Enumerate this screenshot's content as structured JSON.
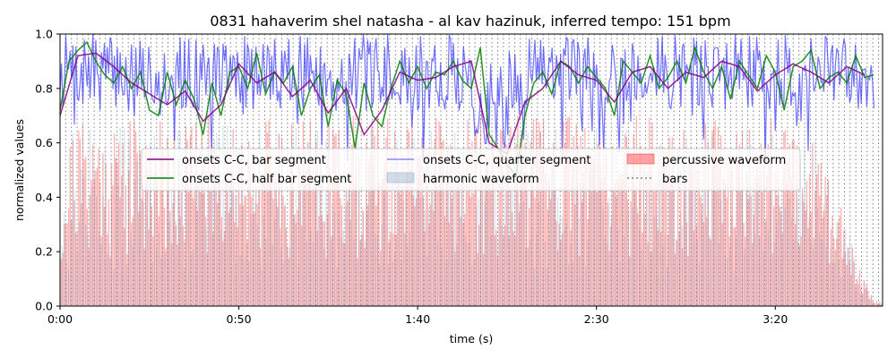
{
  "chart_data": {
    "type": "line",
    "title": "0831 hahaverim shel natasha - al kav hazinuk, inferred tempo: 151 bpm",
    "xlabel": "time (s)",
    "ylabel": "normalized values",
    "xlim": [
      0,
      230
    ],
    "ylim": [
      0,
      1.0
    ],
    "x_ticks": [
      0,
      50,
      100,
      150,
      200
    ],
    "x_tick_labels": [
      "0:00",
      "0:50",
      "1:40",
      "2:30",
      "3:20"
    ],
    "y_ticks": [
      0,
      0.2,
      0.4,
      0.6,
      0.8,
      1.0
    ],
    "y_tick_labels": [
      "0.0",
      "0.2",
      "0.4",
      "0.6",
      "0.8",
      "1.0"
    ],
    "tempo_bpm": 151,
    "legend_position": "center",
    "colors": {
      "bar": "#800080",
      "half": "#008000",
      "quarter": "#0000ff",
      "percussive": "#ff0000",
      "harmonic": "#4682b4",
      "bars": "#808080"
    },
    "series": [
      {
        "name": "onsets C-C, bar segment",
        "key": "bar",
        "x": [
          0,
          5,
          10,
          15,
          20,
          25,
          30,
          35,
          40,
          45,
          50,
          55,
          60,
          65,
          70,
          75,
          80,
          85,
          90,
          95,
          100,
          105,
          110,
          115,
          120,
          125,
          130,
          135,
          140,
          145,
          150,
          155,
          160,
          165,
          170,
          175,
          180,
          185,
          190,
          195,
          200,
          205,
          210,
          215,
          220,
          225
        ],
        "values": [
          0.7,
          0.92,
          0.93,
          0.88,
          0.82,
          0.78,
          0.74,
          0.79,
          0.68,
          0.74,
          0.89,
          0.82,
          0.86,
          0.77,
          0.83,
          0.71,
          0.8,
          0.63,
          0.72,
          0.86,
          0.83,
          0.84,
          0.88,
          0.9,
          0.6,
          0.56,
          0.75,
          0.8,
          0.9,
          0.85,
          0.83,
          0.75,
          0.86,
          0.88,
          0.8,
          0.86,
          0.84,
          0.9,
          0.88,
          0.79,
          0.85,
          0.89,
          0.86,
          0.82,
          0.88,
          0.85
        ]
      },
      {
        "name": "onsets C-C, half bar segment",
        "key": "half",
        "x": [
          0,
          2.5,
          5,
          7.5,
          10,
          12.5,
          15,
          17.5,
          20,
          22.5,
          25,
          27.5,
          30,
          32.5,
          35,
          37.5,
          40,
          42.5,
          45,
          47.5,
          50,
          52.5,
          55,
          57.5,
          60,
          62.5,
          65,
          67.5,
          70,
          72.5,
          75,
          77.5,
          80,
          82.5,
          85,
          87.5,
          90,
          92.5,
          95,
          97.5,
          100,
          102.5,
          105,
          107.5,
          110,
          112.5,
          115,
          117.5,
          120,
          122.5,
          125,
          127.5,
          130,
          132.5,
          135,
          137.5,
          140,
          142.5,
          145,
          147.5,
          150,
          152.5,
          155,
          157.5,
          160,
          162.5,
          165,
          167.5,
          170,
          172.5,
          175,
          177.5,
          180,
          182.5,
          185,
          187.5,
          190,
          192.5,
          195,
          197.5,
          200,
          202.5,
          205,
          207.5,
          210,
          212.5,
          215,
          217.5,
          220,
          222.5,
          225,
          227.5
        ],
        "values": [
          0.72,
          0.9,
          0.94,
          0.97,
          0.9,
          0.85,
          0.82,
          0.88,
          0.8,
          0.86,
          0.72,
          0.7,
          0.86,
          0.74,
          0.83,
          0.76,
          0.63,
          0.82,
          0.7,
          0.86,
          0.88,
          0.8,
          0.93,
          0.78,
          0.86,
          0.82,
          0.88,
          0.7,
          0.8,
          0.85,
          0.66,
          0.83,
          0.78,
          0.58,
          0.82,
          0.7,
          0.66,
          0.8,
          0.9,
          0.82,
          0.88,
          0.8,
          0.86,
          0.85,
          0.9,
          0.83,
          0.8,
          0.95,
          0.63,
          0.58,
          0.52,
          0.48,
          0.7,
          0.82,
          0.86,
          0.78,
          0.9,
          0.88,
          0.82,
          0.88,
          0.84,
          0.8,
          0.7,
          0.9,
          0.86,
          0.82,
          0.92,
          0.8,
          0.84,
          0.9,
          0.82,
          0.95,
          0.86,
          0.8,
          0.88,
          0.76,
          0.9,
          0.85,
          0.8,
          0.92,
          0.86,
          0.72,
          0.88,
          0.9,
          0.94,
          0.8,
          0.84,
          0.86,
          0.82,
          0.92,
          0.84,
          0.85
        ]
      },
      {
        "name": "onsets C-C, quarter segment",
        "key": "quarter",
        "seed": 7,
        "values": []
      },
      {
        "name": "harmonic waveform",
        "key": "harmonic",
        "seed": 13,
        "values": []
      },
      {
        "name": "percussive waveform",
        "key": "percussive",
        "seed": 21,
        "values": []
      },
      {
        "name": "bars",
        "key": "bars",
        "values": []
      }
    ]
  }
}
